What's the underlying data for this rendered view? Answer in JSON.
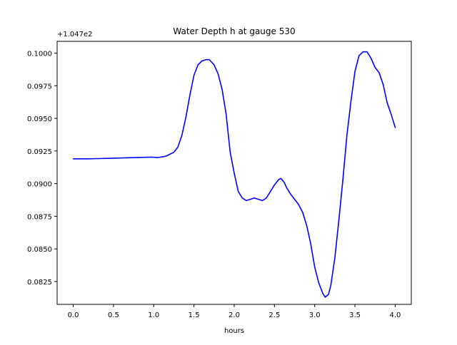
{
  "chart_data": {
    "type": "line",
    "title": "Water Depth h at gauge 530",
    "xlabel": "hours",
    "ylabel": "",
    "offset_label": "+1.047e2",
    "xlim": [
      -0.2,
      4.2
    ],
    "ylim": [
      0.08075,
      0.1009
    ],
    "grid": false,
    "x_ticks": [
      {
        "value": 0.0,
        "label": "0.0"
      },
      {
        "value": 0.5,
        "label": "0.5"
      },
      {
        "value": 1.0,
        "label": "1.0"
      },
      {
        "value": 1.5,
        "label": "1.5"
      },
      {
        "value": 2.0,
        "label": "2.0"
      },
      {
        "value": 2.5,
        "label": "2.5"
      },
      {
        "value": 3.0,
        "label": "3.0"
      },
      {
        "value": 3.5,
        "label": "3.5"
      },
      {
        "value": 4.0,
        "label": "4.0"
      }
    ],
    "y_ticks": [
      {
        "value": 0.0825,
        "label": "0.0825"
      },
      {
        "value": 0.085,
        "label": "0.0850"
      },
      {
        "value": 0.0875,
        "label": "0.0875"
      },
      {
        "value": 0.09,
        "label": "0.0900"
      },
      {
        "value": 0.0925,
        "label": "0.0925"
      },
      {
        "value": 0.095,
        "label": "0.0950"
      },
      {
        "value": 0.0975,
        "label": "0.0975"
      },
      {
        "value": 0.1,
        "label": "0.1000"
      }
    ],
    "series": [
      {
        "color": "#0000ff",
        "x": [
          0.0,
          0.2,
          0.5,
          0.8,
          0.97,
          1.05,
          1.15,
          1.25,
          1.3,
          1.35,
          1.4,
          1.45,
          1.5,
          1.55,
          1.6,
          1.65,
          1.69,
          1.75,
          1.8,
          1.85,
          1.9,
          1.95,
          2.0,
          2.05,
          2.1,
          2.15,
          2.2,
          2.25,
          2.3,
          2.35,
          2.4,
          2.45,
          2.5,
          2.55,
          2.58,
          2.62,
          2.65,
          2.7,
          2.75,
          2.8,
          2.85,
          2.9,
          2.95,
          3.0,
          3.05,
          3.1,
          3.13,
          3.17,
          3.2,
          3.25,
          3.3,
          3.35,
          3.4,
          3.45,
          3.5,
          3.55,
          3.6,
          3.65,
          3.7,
          3.75,
          3.8,
          3.85,
          3.9,
          3.95,
          4.0
        ],
        "y": [
          0.0919,
          0.0919,
          0.09195,
          0.092,
          0.09203,
          0.092,
          0.0921,
          0.0924,
          0.0928,
          0.0937,
          0.0951,
          0.0968,
          0.0983,
          0.0991,
          0.0994,
          0.0995,
          0.0995,
          0.0991,
          0.0984,
          0.0972,
          0.0953,
          0.0924,
          0.0908,
          0.0894,
          0.0889,
          0.0887,
          0.0888,
          0.0889,
          0.0888,
          0.0887,
          0.0889,
          0.0894,
          0.0899,
          0.0903,
          0.0904,
          0.0901,
          0.0897,
          0.0892,
          0.0888,
          0.0884,
          0.0878,
          0.0868,
          0.0854,
          0.0836,
          0.0824,
          0.0816,
          0.0813,
          0.0815,
          0.0822,
          0.0843,
          0.0872,
          0.0903,
          0.0937,
          0.0963,
          0.0986,
          0.0998,
          0.1001,
          0.1001,
          0.0996,
          0.0989,
          0.0985,
          0.0976,
          0.0962,
          0.0953,
          0.0943
        ]
      }
    ]
  }
}
